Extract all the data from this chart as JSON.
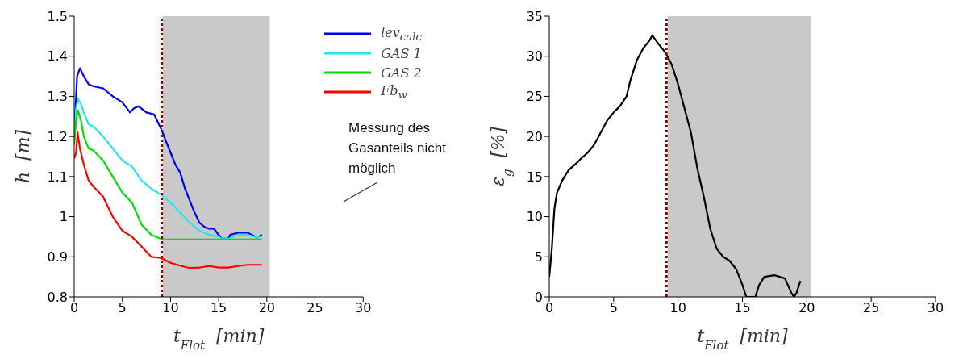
{
  "chart_data": [
    {
      "type": "line",
      "xlabel": "t$_{Flot}$  [min]",
      "ylabel": "h  [m]",
      "xlim": [
        0,
        30
      ],
      "xticks": [
        0,
        5,
        10,
        15,
        20,
        25,
        30
      ],
      "ylim": [
        0.8,
        1.5
      ],
      "yticks": [
        0.8,
        0.9,
        1,
        1.1,
        1.2,
        1.3,
        1.4,
        1.5
      ],
      "grid": false,
      "legend": "top right",
      "line_style": "solid",
      "marker": "none",
      "series": [
        {
          "name": "lev$_{calc}$",
          "color": "#0000ee",
          "x": [
            0,
            0.2,
            0.3,
            0.6,
            1,
            1.5,
            2,
            3,
            4,
            5,
            5.8,
            6.2,
            6.7,
            7.5,
            8.3,
            9,
            9.5,
            10,
            10.5,
            11,
            11.5,
            12,
            12.5,
            13,
            13.5,
            14,
            14.5,
            15,
            15.3,
            16,
            16.2,
            17,
            18,
            19,
            19.5
          ],
          "values": [
            1.2,
            1.3,
            1.35,
            1.37,
            1.35,
            1.33,
            1.325,
            1.32,
            1.3,
            1.285,
            1.26,
            1.27,
            1.275,
            1.26,
            1.255,
            1.22,
            1.19,
            1.16,
            1.13,
            1.11,
            1.07,
            1.04,
            1.01,
            0.985,
            0.975,
            0.97,
            0.97,
            0.955,
            0.945,
            0.945,
            0.955,
            0.96,
            0.96,
            0.948,
            0.955
          ]
        },
        {
          "name": "GAS 1",
          "color": "#22e6f0",
          "x": [
            0,
            0.2,
            0.4,
            0.7,
            1,
            1.5,
            2,
            3,
            4,
            5,
            6,
            7,
            8,
            9,
            10,
            11,
            12,
            13,
            14,
            15,
            15.3,
            16,
            17,
            18,
            19,
            19.5
          ],
          "values": [
            1.2,
            1.27,
            1.295,
            1.28,
            1.26,
            1.23,
            1.225,
            1.2,
            1.17,
            1.14,
            1.125,
            1.09,
            1.07,
            1.055,
            1.035,
            1.01,
            0.985,
            0.965,
            0.955,
            0.95,
            0.945,
            0.945,
            0.955,
            0.955,
            0.948,
            0.952
          ]
        },
        {
          "name": "GAS 2",
          "color": "#00e000",
          "x": [
            0,
            0.2,
            0.4,
            0.7,
            1,
            1.5,
            2,
            3,
            4,
            5,
            6,
            7,
            8,
            9,
            9.3,
            19.5
          ],
          "values": [
            1.18,
            1.24,
            1.265,
            1.24,
            1.2,
            1.17,
            1.165,
            1.14,
            1.1,
            1.06,
            1.035,
            0.98,
            0.955,
            0.945,
            0.943,
            0.943
          ]
        },
        {
          "name": "Fb$_{w}$",
          "color": "#ff0000",
          "x": [
            0,
            0.2,
            0.35,
            0.6,
            1,
            1.5,
            2,
            3,
            4,
            5,
            6,
            7,
            8,
            9,
            10,
            11,
            12,
            13,
            14,
            15,
            16,
            17,
            18,
            19,
            19.5
          ],
          "values": [
            1.145,
            1.16,
            1.21,
            1.17,
            1.13,
            1.09,
            1.075,
            1.05,
            1,
            0.965,
            0.95,
            0.925,
            0.9,
            0.897,
            0.885,
            0.878,
            0.872,
            0.873,
            0.877,
            0.873,
            0.873,
            0.877,
            0.88,
            0.88,
            0.88
          ]
        }
      ],
      "ref_lines": [
        {
          "axis": "x",
          "value": 9.1,
          "color": "#8b0000",
          "line_style": "dotted"
        }
      ],
      "bands": [
        {
          "axis": "x",
          "from": 9.2,
          "to": 20.3,
          "color": "#c0c0c0"
        }
      ],
      "annotations": [
        "Messung des Gasanteils nicht möglich"
      ]
    },
    {
      "type": "line",
      "xlabel": "t$_{Flot}$  [min]",
      "ylabel": "ε$_{g}$  [%]",
      "xlim": [
        0,
        30
      ],
      "xticks": [
        0,
        5,
        10,
        15,
        20,
        25,
        30
      ],
      "ylim": [
        0,
        35
      ],
      "yticks": [
        0,
        5,
        10,
        15,
        20,
        25,
        30,
        35
      ],
      "grid": false,
      "line_style": "solid",
      "marker": "none",
      "series": [
        {
          "color": "#000000",
          "x": [
            0,
            0.2,
            0.4,
            0.6,
            1,
            1.5,
            2,
            2.5,
            3,
            3.5,
            4,
            4.5,
            5,
            5.5,
            6,
            6.3,
            6.8,
            7.3,
            7.8,
            8,
            8.5,
            9,
            9.5,
            10,
            10.5,
            11,
            11.5,
            12,
            12.5,
            13,
            13.5,
            14,
            14.5,
            15,
            15.3,
            16,
            16.3,
            16.7,
            17.5,
            18.3,
            18.8,
            19,
            19.2,
            19.5
          ],
          "values": [
            2.5,
            6,
            11,
            13,
            14.5,
            15.8,
            16.5,
            17.3,
            18,
            19,
            20.5,
            22,
            23,
            23.8,
            25,
            27,
            29.5,
            31,
            32,
            32.6,
            31.5,
            30.5,
            29,
            26.5,
            23.5,
            20.5,
            16,
            12.5,
            8.5,
            6,
            5,
            4.5,
            3.5,
            1.5,
            0,
            0,
            1.5,
            2.5,
            2.7,
            2.3,
            0.5,
            0,
            0.5,
            2
          ]
        }
      ],
      "ref_lines": [
        {
          "axis": "x",
          "value": 9.1,
          "color": "#8b0000",
          "line_style": "dotted"
        }
      ],
      "bands": [
        {
          "axis": "x",
          "from": 9.2,
          "to": 20.3,
          "color": "#c0c0c0"
        }
      ]
    }
  ]
}
